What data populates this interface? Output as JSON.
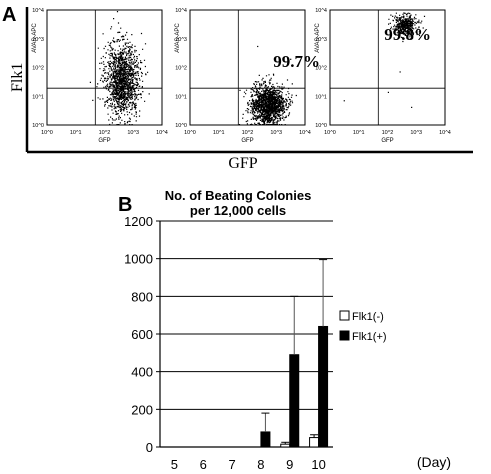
{
  "panel_a": {
    "label": "A",
    "y_axis_label": "Flk1",
    "x_axis_label": "GFP",
    "plot_y_axis_label": "AVAS-APC",
    "plot_x_axis_label": "GFP",
    "axis_ticks": [
      "10^0",
      "10^1",
      "10^2",
      "10^3",
      "10^4"
    ],
    "plots": [
      {
        "percent_label": ""
      },
      {
        "percent_label": "99.7%"
      },
      {
        "percent_label": "99.8%"
      }
    ]
  },
  "panel_b": {
    "label": "B",
    "title_line1": "No. of Beating Colonies",
    "title_line2": "per 12,000 cells",
    "x_unit_label": "(Day)",
    "y_tick_labels": [
      "0",
      "200",
      "400",
      "600",
      "800",
      "1000",
      "1200"
    ],
    "legend": [
      "Flk1(-)",
      "Flk1(+)"
    ],
    "colors": {
      "flk1_neg": "#ffffff",
      "flk1_pos": "#000000"
    }
  },
  "chart_data": [
    {
      "type": "scatter",
      "panel": "A",
      "xlabel": "GFP",
      "ylabel": "Flk1",
      "log_scale": true,
      "xlim": [
        1,
        10000
      ],
      "ylim": [
        1,
        10000
      ],
      "plots": [
        {
          "annotation": "",
          "cluster_center_log10": [
            2.6,
            1.6
          ]
        },
        {
          "annotation": "99.7%",
          "cluster_center_log10": [
            2.7,
            0.7
          ]
        },
        {
          "annotation": "99.8%",
          "cluster_center_log10": [
            2.6,
            3.5
          ]
        }
      ]
    },
    {
      "type": "bar",
      "panel": "B",
      "title": "No. of Beating Colonies per 12,000 cells",
      "xlabel": "(Day)",
      "ylabel": "",
      "categories": [
        "5",
        "6",
        "7",
        "8",
        "9",
        "10"
      ],
      "ylim": [
        0,
        1200
      ],
      "yticks": [
        0,
        200,
        400,
        600,
        800,
        1000,
        1200
      ],
      "grid": true,
      "legend_position": "right",
      "series": [
        {
          "name": "Flk1(-)",
          "values": [
            0,
            0,
            0,
            0,
            15,
            50
          ],
          "errors": [
            0,
            0,
            0,
            0,
            10,
            15
          ]
        },
        {
          "name": "Flk1(+)",
          "values": [
            0,
            0,
            0,
            80,
            490,
            640
          ],
          "errors": [
            0,
            0,
            0,
            100,
            310,
            355
          ]
        }
      ]
    }
  ]
}
